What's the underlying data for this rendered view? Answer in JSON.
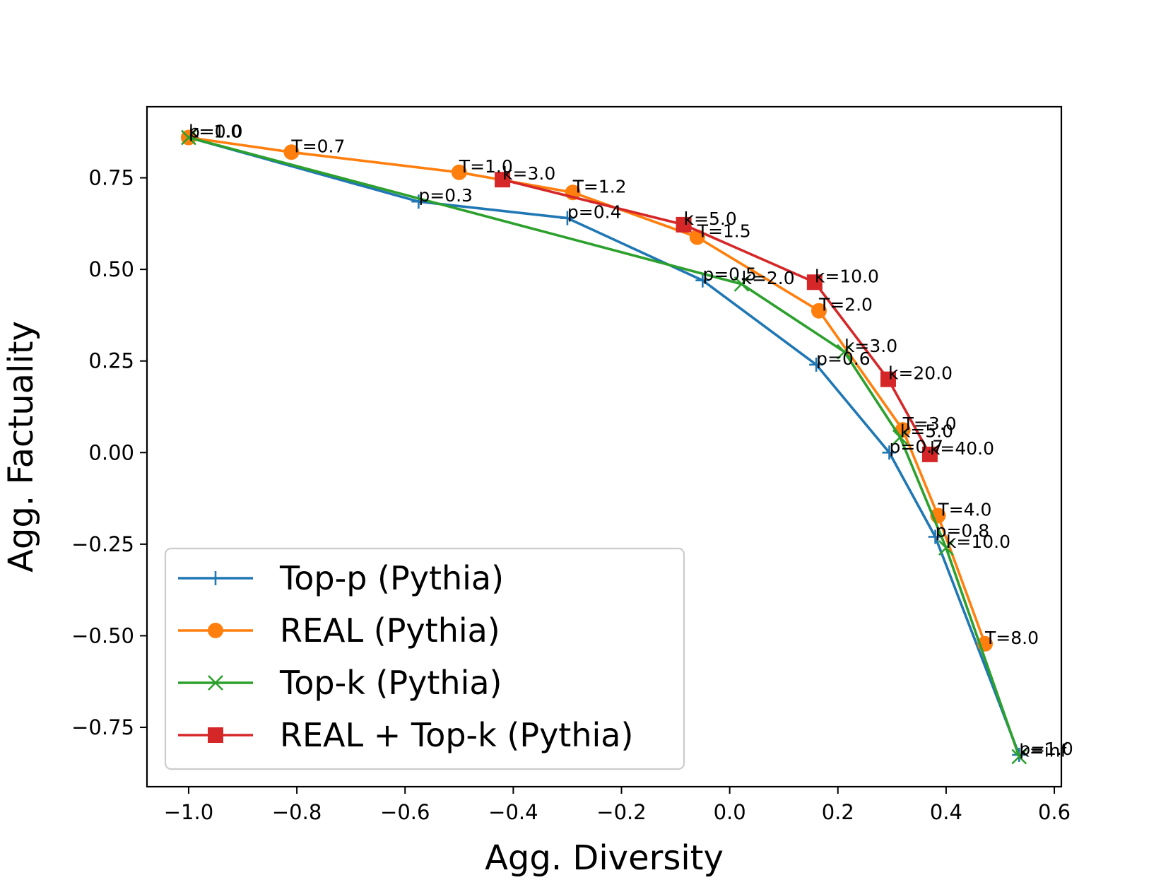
{
  "chart_data": {
    "type": "line",
    "title": "",
    "xlabel": "Agg. Diversity",
    "ylabel": "Agg. Factuality",
    "xlim": [
      -1.077,
      0.613
    ],
    "ylim": [
      -0.912,
      0.944
    ],
    "xticks": [
      -1.0,
      -0.8,
      -0.6,
      -0.4,
      -0.2,
      0.0,
      0.2,
      0.4,
      0.6
    ],
    "xtick_labels": [
      "−1.0",
      "−0.8",
      "−0.6",
      "−0.4",
      "−0.2",
      "0.0",
      "0.2",
      "0.4",
      "0.6"
    ],
    "yticks": [
      -0.75,
      -0.5,
      -0.25,
      0.0,
      0.25,
      0.5,
      0.75
    ],
    "ytick_labels": [
      "−0.75",
      "−0.50",
      "−0.25",
      "0.00",
      "0.25",
      "0.50",
      "0.75"
    ],
    "grid": false,
    "legend_position": "lower-left",
    "series": [
      {
        "name": "Top-p (Pythia)",
        "color": "#1f77b4",
        "marker": "plus",
        "points": [
          {
            "x": -1.0,
            "y": 0.86,
            "label": "p=0.0"
          },
          {
            "x": -0.575,
            "y": 0.685,
            "label": "p=0.3"
          },
          {
            "x": -0.3,
            "y": 0.64,
            "label": "p=0.4"
          },
          {
            "x": -0.05,
            "y": 0.47,
            "label": "p=0.5"
          },
          {
            "x": 0.16,
            "y": 0.24,
            "label": "p=0.6"
          },
          {
            "x": 0.295,
            "y": 0.0,
            "label": "p=0.7"
          },
          {
            "x": 0.38,
            "y": -0.23,
            "label": "p=0.8"
          },
          {
            "x": 0.535,
            "y": -0.825,
            "label": "p=1.0"
          }
        ]
      },
      {
        "name": "REAL (Pythia)",
        "color": "#ff7f0e",
        "marker": "circle",
        "points": [
          {
            "x": -1.0,
            "y": 0.86,
            "label": ""
          },
          {
            "x": -0.81,
            "y": 0.82,
            "label": "T=0.7"
          },
          {
            "x": -0.5,
            "y": 0.765,
            "label": "T=1.0"
          },
          {
            "x": -0.29,
            "y": 0.71,
            "label": "T=1.2"
          },
          {
            "x": -0.06,
            "y": 0.588,
            "label": "T=1.5"
          },
          {
            "x": 0.165,
            "y": 0.387,
            "label": "T=2.0"
          },
          {
            "x": 0.32,
            "y": 0.062,
            "label": "T=3.0"
          },
          {
            "x": 0.385,
            "y": -0.172,
            "label": "T=4.0"
          },
          {
            "x": 0.472,
            "y": -0.522,
            "label": "T=8.0"
          }
        ]
      },
      {
        "name": "Top-k (Pythia)",
        "color": "#2ca02c",
        "marker": "x",
        "points": [
          {
            "x": -1.0,
            "y": 0.86,
            "label": "k=1.0"
          },
          {
            "x": 0.022,
            "y": 0.46,
            "label": "k=2.0"
          },
          {
            "x": 0.212,
            "y": 0.275,
            "label": "k=3.0"
          },
          {
            "x": 0.315,
            "y": 0.042,
            "label": "k=5.0"
          },
          {
            "x": 0.4,
            "y": -0.26,
            "label": "k=10.0"
          },
          {
            "x": 0.535,
            "y": -0.83,
            "label": "k=inf"
          }
        ]
      },
      {
        "name": "REAL + Top-k (Pythia)",
        "color": "#d62728",
        "marker": "square",
        "points": [
          {
            "x": -0.42,
            "y": 0.745,
            "label": "k=3.0"
          },
          {
            "x": -0.085,
            "y": 0.622,
            "label": "k=5.0"
          },
          {
            "x": 0.157,
            "y": 0.465,
            "label": "k=10.0"
          },
          {
            "x": 0.293,
            "y": 0.2,
            "label": "k=20.0"
          },
          {
            "x": 0.37,
            "y": -0.005,
            "label": "k=40.0"
          }
        ]
      }
    ]
  }
}
